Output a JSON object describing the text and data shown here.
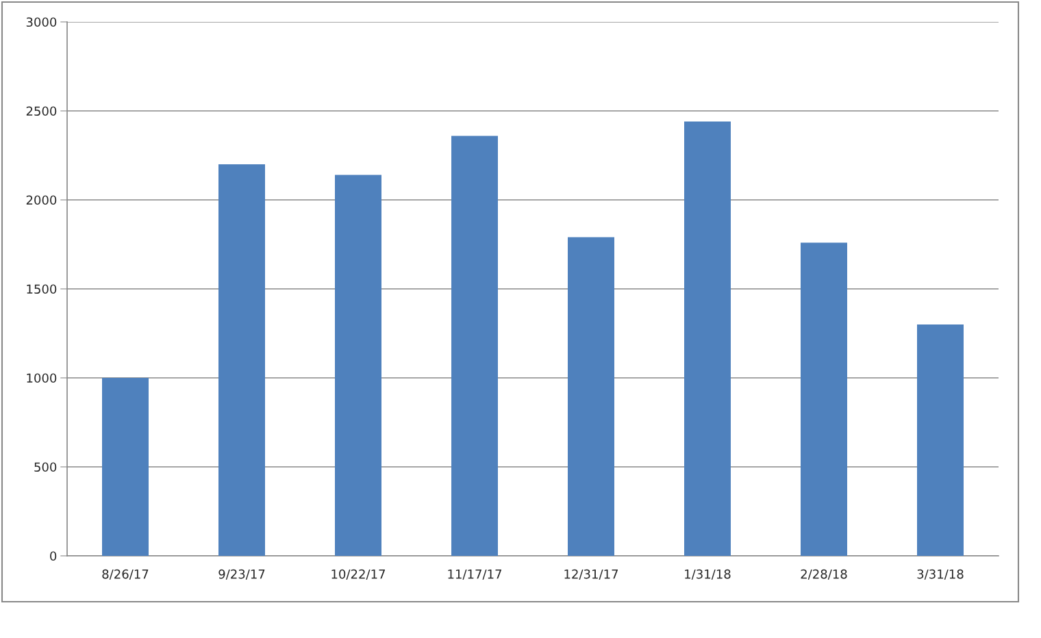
{
  "chart_data": {
    "type": "bar",
    "categories": [
      "8/26/17",
      "9/23/17",
      "10/22/17",
      "11/17/17",
      "12/31/17",
      "1/31/18",
      "2/28/18",
      "3/31/18"
    ],
    "values": [
      1000,
      2200,
      2140,
      2360,
      1790,
      2440,
      1760,
      1300
    ],
    "color": "#4f81bd",
    "ylim": [
      0,
      3000
    ],
    "yticks": [
      0,
      500,
      1000,
      1500,
      2000,
      2500,
      3000
    ],
    "grid": "y"
  }
}
